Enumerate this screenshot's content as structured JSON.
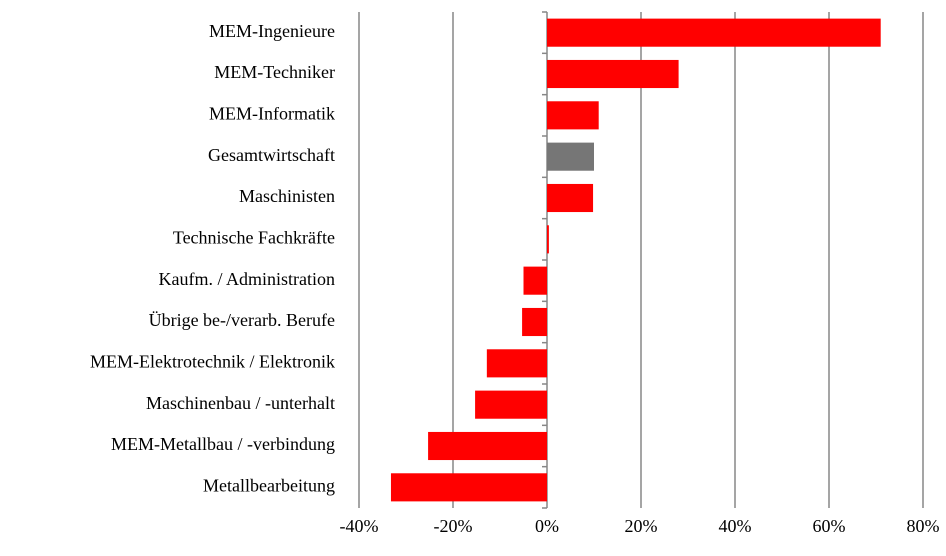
{
  "chart_data": {
    "type": "bar",
    "orientation": "horizontal",
    "categories": [
      "MEM-Ingenieure",
      "MEM-Techniker",
      "MEM-Informatik",
      "Gesamtwirtschaft",
      "Maschinisten",
      "Technische Fachkräfte",
      "Kaufm. / Administration",
      "Übrige be-/verarb. Berufe",
      "MEM-Elektrotechnik / Elektronik",
      "Maschinenbau / -unterhalt",
      "MEM-Metallbau / -verbindung",
      "Metallbearbeitung"
    ],
    "values": [
      71,
      28,
      11,
      10,
      9.8,
      0.4,
      -5,
      -5.3,
      -12.8,
      -15.3,
      -25.3,
      -33.2
    ],
    "colors": [
      "#ff0000",
      "#ff0000",
      "#ff0000",
      "#767676",
      "#ff0000",
      "#ff0000",
      "#ff0000",
      "#ff0000",
      "#ff0000",
      "#ff0000",
      "#ff0000",
      "#ff0000"
    ],
    "xlim": [
      -40,
      80
    ],
    "xticks": [
      {
        "value": -40,
        "label": "-40%"
      },
      {
        "value": -20,
        "label": "-20%"
      },
      {
        "value": 0,
        "label": "0%"
      },
      {
        "value": 20,
        "label": "20%"
      },
      {
        "value": 40,
        "label": "40%"
      },
      {
        "value": 60,
        "label": "60%"
      },
      {
        "value": 80,
        "label": "80%"
      }
    ],
    "grid": true
  }
}
